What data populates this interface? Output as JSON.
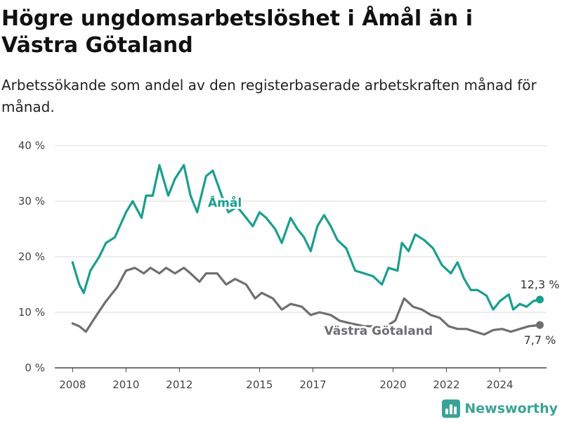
{
  "header": {
    "title": "Högre ungdomsarbetslöshet i Åmål än i Västra Götaland",
    "subtitle": "Arbetssökande som andel av den registerbaserade arbetskraften månad för månad."
  },
  "brand": {
    "name": "Newsworthy",
    "logo_icon": "bar-chart-icon",
    "color": "#3aa397"
  },
  "chart_data": {
    "type": "line",
    "title": "Högre ungdomsarbetslöshet i Åmål än i Västra Götaland",
    "xlabel": "",
    "ylabel": "",
    "ylim": [
      0,
      40
    ],
    "xlim": [
      "2007-05",
      "2025-10"
    ],
    "grid": true,
    "y_ticks": [
      0,
      10,
      20,
      30,
      40
    ],
    "y_tick_labels": [
      "0 %",
      "10 %",
      "20 %",
      "30 %",
      "40 %"
    ],
    "x_ticks": [
      2008,
      2010,
      2012,
      2015,
      2017,
      2020,
      2022,
      2024
    ],
    "x_tick_labels": [
      "2008",
      "2010",
      "2012",
      "2015",
      "2017",
      "2020",
      "2022",
      "2024"
    ],
    "series": [
      {
        "name": "Åmål",
        "color": "#1a9e8f",
        "end_label": "12,3 %",
        "points": [
          [
            "2008-01",
            19
          ],
          [
            "2008-04",
            15
          ],
          [
            "2008-06",
            13.5
          ],
          [
            "2008-09",
            17.5
          ],
          [
            "2009-01",
            20
          ],
          [
            "2009-04",
            22.5
          ],
          [
            "2009-08",
            23.5
          ],
          [
            "2010-01",
            28
          ],
          [
            "2010-04",
            30
          ],
          [
            "2010-08",
            27
          ],
          [
            "2010-10",
            31
          ],
          [
            "2011-01",
            31
          ],
          [
            "2011-04",
            36.5
          ],
          [
            "2011-08",
            31
          ],
          [
            "2011-11",
            34
          ],
          [
            "2012-03",
            36.5
          ],
          [
            "2012-06",
            31
          ],
          [
            "2012-09",
            28
          ],
          [
            "2013-01",
            34.5
          ],
          [
            "2013-04",
            35.5
          ],
          [
            "2013-08",
            31
          ],
          [
            "2013-11",
            28
          ],
          [
            "2014-03",
            29
          ],
          [
            "2014-07",
            27
          ],
          [
            "2014-10",
            25.5
          ],
          [
            "2015-01",
            28
          ],
          [
            "2015-04",
            27
          ],
          [
            "2015-08",
            25
          ],
          [
            "2015-11",
            22.5
          ],
          [
            "2016-03",
            27
          ],
          [
            "2016-06",
            25
          ],
          [
            "2016-09",
            23.5
          ],
          [
            "2016-12",
            21
          ],
          [
            "2017-03",
            25.5
          ],
          [
            "2017-06",
            27.5
          ],
          [
            "2017-09",
            25.5
          ],
          [
            "2017-12",
            23
          ],
          [
            "2018-04",
            21.5
          ],
          [
            "2018-08",
            17.5
          ],
          [
            "2018-12",
            17
          ],
          [
            "2019-04",
            16.5
          ],
          [
            "2019-08",
            15
          ],
          [
            "2019-11",
            18
          ],
          [
            "2020-03",
            17.5
          ],
          [
            "2020-05",
            22.5
          ],
          [
            "2020-08",
            21
          ],
          [
            "2020-11",
            24
          ],
          [
            "2021-03",
            23
          ],
          [
            "2021-07",
            21.5
          ],
          [
            "2021-11",
            18.5
          ],
          [
            "2022-03",
            17
          ],
          [
            "2022-06",
            19
          ],
          [
            "2022-09",
            16
          ],
          [
            "2022-12",
            14
          ],
          [
            "2023-03",
            14
          ],
          [
            "2023-07",
            13
          ],
          [
            "2023-10",
            10.5
          ],
          [
            "2024-01",
            12
          ],
          [
            "2024-05",
            13.2
          ],
          [
            "2024-07",
            10.5
          ],
          [
            "2024-10",
            11.5
          ],
          [
            "2025-01",
            11
          ],
          [
            "2025-04",
            12
          ],
          [
            "2025-07",
            12.3
          ]
        ]
      },
      {
        "name": "Västra Götaland",
        "color": "#6e6e73",
        "end_label": "7,7 %",
        "points": [
          [
            "2008-01",
            8
          ],
          [
            "2008-04",
            7.5
          ],
          [
            "2008-07",
            6.5
          ],
          [
            "2008-11",
            9
          ],
          [
            "2009-04",
            12
          ],
          [
            "2009-09",
            14.5
          ],
          [
            "2010-01",
            17.5
          ],
          [
            "2010-05",
            18
          ],
          [
            "2010-09",
            17
          ],
          [
            "2010-12",
            18
          ],
          [
            "2011-04",
            17
          ],
          [
            "2011-07",
            18
          ],
          [
            "2011-11",
            17
          ],
          [
            "2012-03",
            18
          ],
          [
            "2012-06",
            17
          ],
          [
            "2012-10",
            15.5
          ],
          [
            "2013-01",
            17
          ],
          [
            "2013-06",
            17
          ],
          [
            "2013-10",
            15
          ],
          [
            "2014-02",
            16
          ],
          [
            "2014-07",
            15
          ],
          [
            "2014-11",
            12.5
          ],
          [
            "2015-02",
            13.5
          ],
          [
            "2015-07",
            12.5
          ],
          [
            "2015-11",
            10.5
          ],
          [
            "2016-03",
            11.5
          ],
          [
            "2016-08",
            11
          ],
          [
            "2016-12",
            9.5
          ],
          [
            "2017-04",
            10
          ],
          [
            "2017-09",
            9.5
          ],
          [
            "2018-01",
            8.5
          ],
          [
            "2018-06",
            8
          ],
          [
            "2018-12",
            7.5
          ],
          [
            "2019-05",
            7.5
          ],
          [
            "2019-10",
            7.5
          ],
          [
            "2020-02",
            8.5
          ],
          [
            "2020-06",
            12.5
          ],
          [
            "2020-10",
            11
          ],
          [
            "2021-02",
            10.5
          ],
          [
            "2021-06",
            9.5
          ],
          [
            "2021-10",
            9
          ],
          [
            "2022-02",
            7.5
          ],
          [
            "2022-06",
            7
          ],
          [
            "2022-10",
            7
          ],
          [
            "2023-02",
            6.5
          ],
          [
            "2023-06",
            6
          ],
          [
            "2023-10",
            6.8
          ],
          [
            "2024-02",
            7
          ],
          [
            "2024-06",
            6.5
          ],
          [
            "2024-10",
            7
          ],
          [
            "2025-02",
            7.5
          ],
          [
            "2025-07",
            7.7
          ]
        ]
      }
    ]
  }
}
